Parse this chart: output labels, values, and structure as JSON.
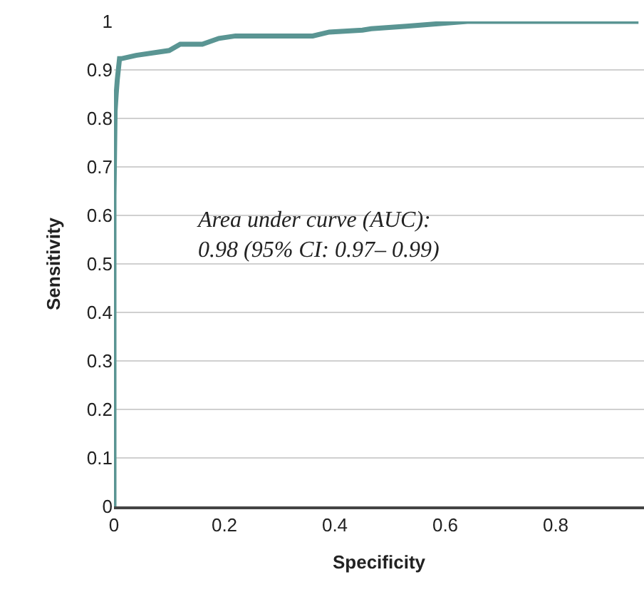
{
  "chart_data": {
    "type": "line",
    "xlabel": "Specificity",
    "ylabel": "Sensitivity",
    "x": [
      0,
      0,
      0.002,
      0.004,
      0.006,
      0.01,
      0.013,
      0.04,
      0.1,
      0.12,
      0.16,
      0.19,
      0.22,
      0.36,
      0.39,
      0.45,
      0.466,
      0.53,
      0.64,
      0.95
    ],
    "series": [
      {
        "color": "#5a9593",
        "values": [
          0,
          0.64,
          0.815,
          0.85,
          0.88,
          0.923,
          0.923,
          0.93,
          0.94,
          0.953,
          0.953,
          0.965,
          0.97,
          0.97,
          0.978,
          0.982,
          0.985,
          0.99,
          1,
          1
        ]
      }
    ],
    "xlim": [
      0,
      0.96
    ],
    "ylim": [
      0,
      1.0
    ],
    "xticks": [
      0,
      0.2,
      0.4,
      0.6,
      0.8
    ],
    "yticks": [
      0,
      0.1,
      0.2,
      0.3,
      0.4,
      0.5,
      0.6,
      0.7,
      0.8,
      0.9,
      1
    ],
    "grid": "y",
    "marker": "none",
    "line_style": "solid",
    "annotations": [
      "Area under curve (AUC):\n0.98 (95% CI: 0.97– 0.99)"
    ]
  }
}
